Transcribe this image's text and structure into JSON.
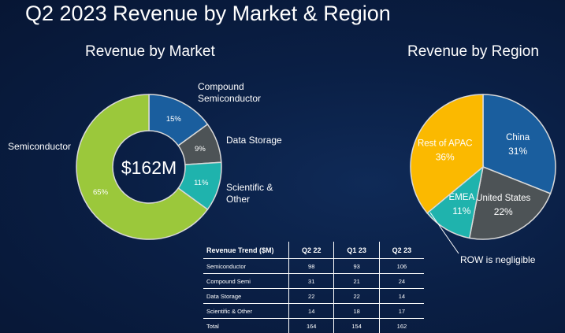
{
  "title": "Q2 2023 Revenue by Market & Region",
  "chart_data": [
    {
      "type": "pie",
      "title": "Revenue by Market",
      "center_label": "$162M",
      "slices": [
        {
          "name": "Compound Semiconductor",
          "value": 15,
          "label": "15%",
          "color": "#1a5e9e"
        },
        {
          "name": "Data Storage",
          "value": 9,
          "label": "9%",
          "color": "#4d5356"
        },
        {
          "name": "Scientific & Other",
          "value": 11,
          "label": "11%",
          "color": "#1fb3ad"
        },
        {
          "name": "Semiconductor",
          "value": 65,
          "label": "65%",
          "color": "#9bc83b"
        }
      ]
    },
    {
      "type": "pie",
      "title": "Revenue by Region",
      "slices": [
        {
          "name": "China",
          "value": 31,
          "label": "31%",
          "color": "#1a5e9e"
        },
        {
          "name": "United States",
          "value": 22,
          "label": "22%",
          "color": "#4d5356"
        },
        {
          "name": "EMEA",
          "value": 11,
          "label": "11%",
          "color": "#1fb3ad"
        },
        {
          "name": "Rest of APAC",
          "value": 36,
          "label": "36%",
          "color": "#fbb900"
        }
      ],
      "annotation": "ROW is negligible"
    },
    {
      "type": "table",
      "columns": [
        "Revenue Trend ($M)",
        "Q2 22",
        "Q1 23",
        "Q2 23"
      ],
      "rows": [
        [
          "Semiconductor",
          "98",
          "93",
          "106"
        ],
        [
          "Compound Semi",
          "31",
          "21",
          "24"
        ],
        [
          "Data Storage",
          "22",
          "22",
          "14"
        ],
        [
          "Scientific & Other",
          "14",
          "18",
          "17"
        ],
        [
          "Total",
          "164",
          "154",
          "162"
        ]
      ]
    }
  ]
}
